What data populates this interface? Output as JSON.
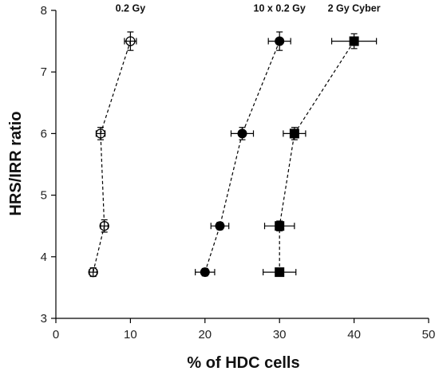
{
  "chart_data": {
    "type": "scatter",
    "xlabel": "% of HDC cells",
    "ylabel": "HRS/IRR ratio",
    "xlim": [
      0,
      50
    ],
    "ylim": [
      3,
      8
    ],
    "x_ticks": [
      0,
      10,
      20,
      30,
      40,
      50
    ],
    "y_ticks": [
      3,
      4,
      5,
      6,
      7,
      8
    ],
    "grid": false,
    "legend": "none",
    "colors": {
      "axis": "#000000",
      "marker": "#000000",
      "line": "#000000"
    },
    "series": [
      {
        "name": "0.2 Gy",
        "marker": "open-circle",
        "points": [
          {
            "x": 5,
            "y": 3.75,
            "xerr": 0.5,
            "yerr": 0.07
          },
          {
            "x": 6.5,
            "y": 4.5,
            "xerr": 0.5,
            "yerr": 0.1
          },
          {
            "x": 6,
            "y": 6.0,
            "xerr": 0.6,
            "yerr": 0.1
          },
          {
            "x": 10,
            "y": 7.5,
            "xerr": 0.8,
            "yerr": 0.15
          }
        ]
      },
      {
        "name": "10 x 0.2 Gy",
        "marker": "filled-circle",
        "points": [
          {
            "x": 20,
            "y": 3.75,
            "xerr": 1.3,
            "yerr": 0.06
          },
          {
            "x": 22,
            "y": 4.5,
            "xerr": 1.2,
            "yerr": 0.06
          },
          {
            "x": 25,
            "y": 6.0,
            "xerr": 1.5,
            "yerr": 0.1
          },
          {
            "x": 30,
            "y": 7.5,
            "xerr": 1.5,
            "yerr": 0.15
          }
        ]
      },
      {
        "name": "2 Gy Cyber",
        "marker": "filled-square",
        "points": [
          {
            "x": 30,
            "y": 3.75,
            "xerr": 2.2,
            "yerr": 0.05
          },
          {
            "x": 30,
            "y": 4.5,
            "xerr": 2.0,
            "yerr": 0.08
          },
          {
            "x": 32,
            "y": 6.0,
            "xerr": 1.5,
            "yerr": 0.1
          },
          {
            "x": 40,
            "y": 7.5,
            "xerr": 3.0,
            "yerr": 0.12
          }
        ]
      }
    ]
  }
}
